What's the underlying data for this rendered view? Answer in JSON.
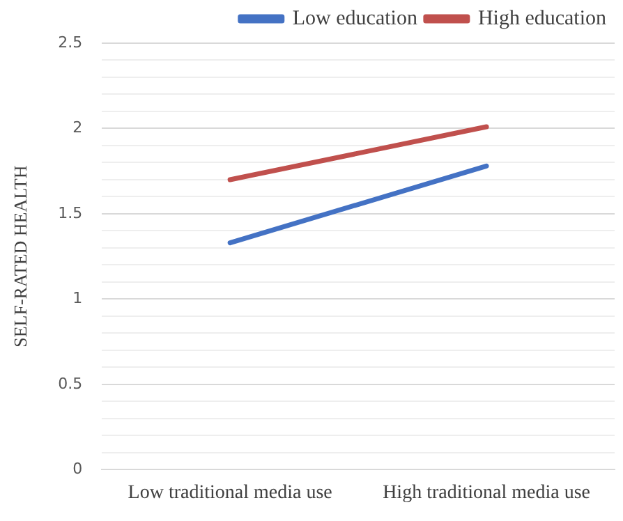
{
  "chart_data": {
    "type": "line",
    "ylabel": "SELF-RATED HEALTH",
    "categories": [
      "Low traditional media use",
      "High traditional media use"
    ],
    "series": [
      {
        "name": "Low education",
        "color": "#4472c4",
        "values": [
          1.33,
          1.78
        ]
      },
      {
        "name": "High education",
        "color": "#c0504d",
        "values": [
          1.7,
          2.01
        ]
      }
    ],
    "ylim": [
      0,
      2.5
    ],
    "yticks": [
      0,
      {
        "value": 0.1,
        "label": null
      },
      {
        "value": 0.2,
        "label": null
      },
      {
        "value": 0.3,
        "label": null
      },
      {
        "value": 0.4,
        "label": null
      },
      0.5,
      {
        "value": 0.6,
        "label": null
      },
      {
        "value": 0.7,
        "label": null
      },
      {
        "value": 0.8,
        "label": null
      },
      {
        "value": 0.9,
        "label": null
      },
      1,
      {
        "value": 1.1,
        "label": null
      },
      {
        "value": 1.2,
        "label": null
      },
      {
        "value": 1.3,
        "label": null
      },
      {
        "value": 1.4,
        "label": null
      },
      1.5,
      {
        "value": 1.6,
        "label": null
      },
      {
        "value": 1.7,
        "label": null
      },
      {
        "value": 1.8,
        "label": null
      },
      {
        "value": 1.9,
        "label": null
      },
      2,
      {
        "value": 2.1,
        "label": null
      },
      {
        "value": 2.2,
        "label": null
      },
      {
        "value": 2.3,
        "label": null
      },
      {
        "value": 2.4,
        "label": null
      },
      2.5
    ],
    "grid": "y",
    "legend": "top",
    "marker": "none",
    "line_style": "solid"
  }
}
